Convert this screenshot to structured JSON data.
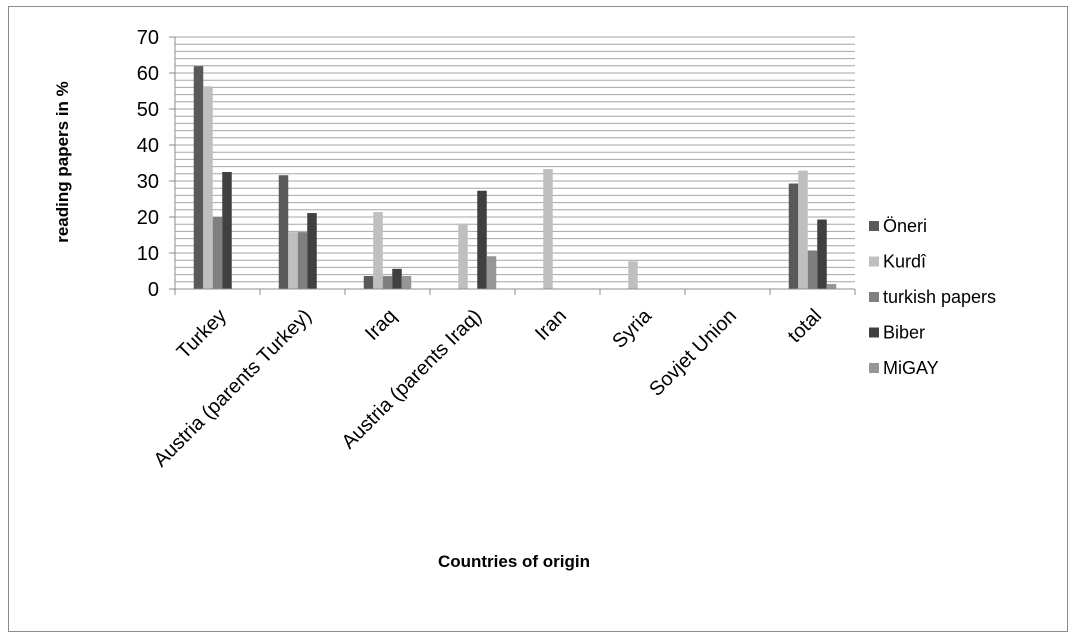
{
  "chart_data": {
    "type": "bar",
    "title": "",
    "xlabel": "Countries of origin",
    "ylabel": "reading papers in %",
    "ylim": [
      0,
      70
    ],
    "yticks": [
      0,
      10,
      20,
      30,
      40,
      50,
      60,
      70
    ],
    "grid": true,
    "legend_position": "right",
    "categories": [
      "Turkey",
      "Austria (parents Turkey)",
      "Iraq",
      "Austria (parents Iraq)",
      "Iran",
      "Syria",
      "Sovjet Union",
      "total"
    ],
    "series": [
      {
        "name": "Öneri",
        "color": "#595959",
        "values": [
          61.9,
          31.6,
          3.6,
          0,
          0,
          0,
          0,
          29.3
        ]
      },
      {
        "name": "Kurdî",
        "color": "#bfbfbf",
        "values": [
          56.3,
          15.8,
          21.4,
          18.2,
          33.3,
          7.7,
          0,
          32.9
        ]
      },
      {
        "name": "turkish papers",
        "color": "#7f7f7f",
        "values": [
          20.0,
          15.8,
          3.6,
          0,
          0,
          0,
          0,
          10.7
        ]
      },
      {
        "name": "Biber",
        "color": "#404040",
        "values": [
          32.5,
          21.1,
          5.6,
          27.3,
          0,
          0,
          0,
          19.3
        ]
      },
      {
        "name": "MiGAY",
        "color": "#969696",
        "values": [
          0,
          0,
          3.6,
          9.1,
          0,
          0,
          0,
          1.4
        ]
      }
    ]
  }
}
